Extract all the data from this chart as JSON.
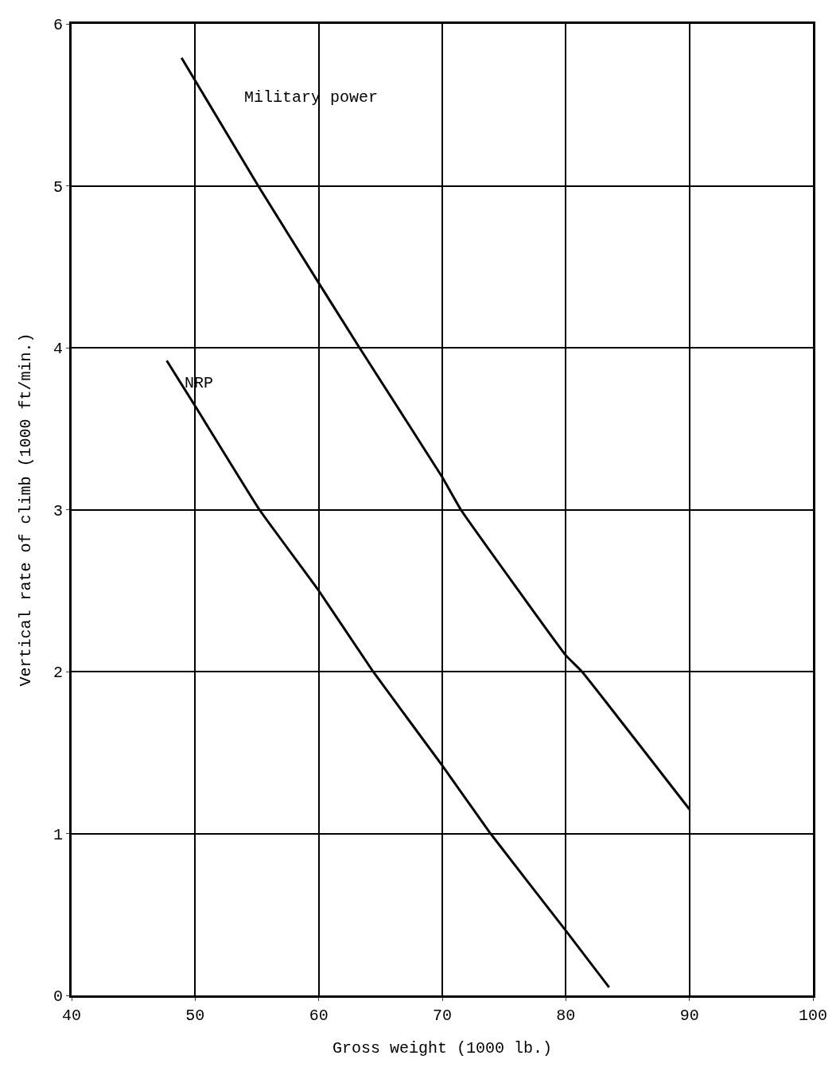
{
  "chart_data": {
    "type": "line",
    "xlabel": "Gross weight (1000 lb.)",
    "ylabel": "Vertical rate of climb (1000 ft/min.)",
    "xlim": [
      40,
      100
    ],
    "xticks": [
      40,
      50,
      60,
      70,
      80,
      90,
      100
    ],
    "ylim": [
      0,
      6
    ],
    "yticks": [
      0,
      1,
      2,
      3,
      4,
      5,
      6
    ],
    "grid": true,
    "legend": false,
    "marker": "none",
    "line_style": "solid",
    "series": [
      {
        "name": "Military power",
        "color": "#000000",
        "x": [
          48.9,
          50,
          55.1,
          60,
          63.3,
          70,
          71.5,
          80,
          81.3,
          90
        ],
        "values": [
          5.79,
          5.65,
          5.0,
          4.4,
          4.0,
          3.2,
          3.0,
          2.1,
          2.0,
          1.15
        ]
      },
      {
        "name": "NRP",
        "color": "#000000",
        "x": [
          47.7,
          50,
          55.2,
          60,
          64.4,
          70,
          73.9,
          80,
          83.5
        ],
        "values": [
          3.92,
          3.64,
          3.0,
          2.5,
          2.0,
          1.42,
          1.0,
          0.4,
          0.05
        ]
      }
    ]
  }
}
